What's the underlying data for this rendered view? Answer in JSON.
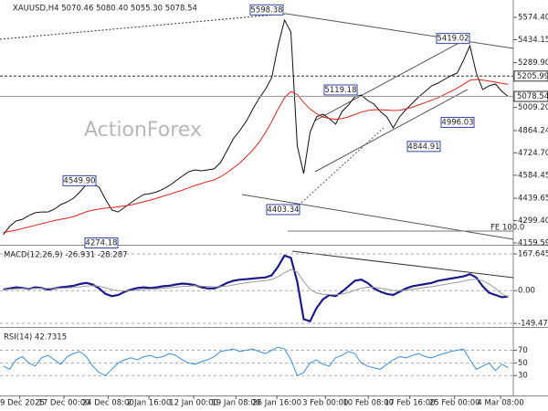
{
  "watermark": "ActionForex",
  "chart_data": [
    {
      "type": "line",
      "title": "XAUUSD,H4  5070.46 5080.40 5055.30 5078.54",
      "ylim": [
        4148.1,
        5683.2
      ],
      "yticks": [
        {
          "value": 5574.4,
          "label": "5574.40"
        },
        5434.15,
        {
          "value": 5289.9,
          "label": "5289.90"
        },
        {
          "value": 5009.2,
          "label": "5009.20"
        },
        4864.24,
        {
          "value": 4724.7,
          "label": "4724.70"
        },
        4584.45,
        4439.65,
        {
          "value": 4299.4,
          "label": "4299.40"
        },
        4159.59
      ],
      "series": [
        {
          "name": "XAUUSD",
          "color": "#111111",
          "values": [
            4211,
            4263,
            4297,
            4308,
            4331,
            4349,
            4354,
            4354,
            4371,
            4400,
            4417,
            4440,
            4480,
            4526,
            4532,
            4509,
            4434,
            4366,
            4354,
            4383,
            4412,
            4440,
            4463,
            4469,
            4480,
            4497,
            4520,
            4549,
            4578,
            4606,
            4618,
            4612,
            4618,
            4624,
            4664,
            4738,
            4813,
            4864,
            4921,
            4996,
            5065,
            5122,
            5196,
            5397,
            5557,
            5483,
            4767,
            4595,
            4853,
            4950,
            4967,
            4939,
            4904,
            4984,
            5024,
            5076,
            5087,
            5053,
            5030,
            4984,
            4950,
            4881,
            4950,
            4996,
            5036,
            5076,
            5110,
            5145,
            5162,
            5185,
            5208,
            5225,
            5305,
            5397,
            5225,
            5122,
            5145,
            5156,
            5110,
            5078.54
          ]
        },
        {
          "name": "MA",
          "color": "#e02020",
          "values": [
            4225,
            4232,
            4240,
            4250,
            4260,
            4270,
            4280,
            4290,
            4300,
            4308,
            4315,
            4325,
            4340,
            4355,
            4365,
            4372,
            4378,
            4382,
            4386,
            4392,
            4398,
            4408,
            4418,
            4428,
            4440,
            4452,
            4465,
            4478,
            4490,
            4505,
            4520,
            4532,
            4545,
            4555,
            4575,
            4600,
            4630,
            4660,
            4700,
            4740,
            4790,
            4850,
            4920,
            5000,
            5070,
            5110,
            5090,
            5040,
            5000,
            4970,
            4950,
            4940,
            4935,
            4940,
            4950,
            4965,
            4980,
            4990,
            4995,
            4995,
            4993,
            4990,
            4992,
            5000,
            5010,
            5025,
            5040,
            5055,
            5070,
            5090,
            5110,
            5130,
            5155,
            5180,
            5185,
            5180,
            5175,
            5168,
            5160,
            5155
          ]
        }
      ],
      "price_markers": [
        5205.99,
        5078.54
      ],
      "annotations": [
        5598.38,
        5419.02,
        5119.18,
        {
          "value": 4996.03,
          "label": "4996.03"
        },
        4844.91,
        {
          "value": 4549.9,
          "label": "4549.90"
        },
        4274.18,
        4403.34
      ],
      "fe_label": "FE 100.0"
    },
    {
      "type": "line",
      "title": "MACD(12,26,9) -26.931 -28.287",
      "ylim": [
        -166,
        201
      ],
      "yticks": [
        167.645,
        {
          "value": 0,
          "label": "0.00"
        },
        -149.472
      ],
      "series": [
        {
          "name": "MACD",
          "color": "#1a1a8c",
          "values": [
            5,
            10,
            15,
            12,
            8,
            15,
            12,
            5,
            10,
            15,
            18,
            22,
            30,
            35,
            28,
            10,
            -15,
            -25,
            -20,
            -5,
            5,
            12,
            15,
            12,
            15,
            20,
            22,
            28,
            32,
            30,
            25,
            15,
            10,
            10,
            20,
            35,
            45,
            50,
            52,
            55,
            58,
            60,
            70,
            110,
            160,
            150,
            40,
            -130,
            -140,
            -80,
            -40,
            -20,
            -25,
            -5,
            20,
            45,
            50,
            35,
            10,
            -5,
            -15,
            -20,
            -5,
            10,
            20,
            25,
            30,
            35,
            45,
            50,
            55,
            60,
            65,
            75,
            60,
            20,
            -10,
            -20,
            -30,
            -26.931
          ]
        },
        {
          "name": "Signal",
          "color": "#9a9a9a",
          "values": [
            5,
            6,
            8,
            9,
            9,
            10,
            11,
            10,
            10,
            11,
            12,
            14,
            17,
            21,
            22,
            20,
            13,
            5,
            0,
            -1,
            0,
            3,
            5,
            7,
            8,
            11,
            13,
            16,
            19,
            21,
            22,
            21,
            19,
            17,
            18,
            21,
            26,
            31,
            35,
            39,
            43,
            46,
            51,
            63,
            82,
            96,
            85,
            42,
            6,
            -11,
            -17,
            -18,
            -19,
            -16,
            -9,
            2,
            11,
            16,
            15,
            11,
            6,
            1,
            0,
            2,
            6,
            10,
            14,
            18,
            23,
            28,
            33,
            38,
            43,
            50,
            52,
            46,
            30,
            10,
            -15,
            -28.287
          ]
        }
      ]
    },
    {
      "type": "line",
      "title": "RSI(14) 42.7315",
      "ylim": [
        0,
        104
      ],
      "yticks": [
        70,
        50,
        30
      ],
      "series": [
        {
          "name": "RSI",
          "color": "#3a8fd8",
          "values": [
            45,
            40,
            55,
            60,
            50,
            45,
            58,
            62,
            55,
            48,
            60,
            65,
            68,
            60,
            45,
            35,
            30,
            40,
            50,
            55,
            58,
            55,
            60,
            62,
            58,
            60,
            65,
            62,
            55,
            50,
            48,
            52,
            55,
            60,
            68,
            70,
            72,
            68,
            70,
            72,
            68,
            65,
            70,
            75,
            72,
            55,
            30,
            35,
            50,
            55,
            48,
            45,
            58,
            62,
            68,
            65,
            50,
            45,
            42,
            40,
            48,
            55,
            60,
            58,
            62,
            65,
            60,
            58,
            62,
            65,
            68,
            70,
            72,
            55,
            40,
            45,
            50,
            38,
            48,
            42.7315
          ]
        }
      ],
      "xticks": [
        {
          "value": 2.6,
          "label": "9 Dec 2025"
        },
        {
          "value": 9.5,
          "label": "17 Dec 00:00"
        },
        {
          "value": 16.4,
          "label": "24 Dec 08:00"
        },
        {
          "value": 22.8,
          "label": "2 Jan 16:00"
        },
        {
          "value": 29.8,
          "label": "12 Jan 00:00"
        },
        {
          "value": 36.4,
          "label": "19 Jan 08:00"
        },
        {
          "value": 42.8,
          "label": "26 Jan 16:00"
        },
        {
          "value": 50.4,
          "label": "3 Feb 00:00"
        },
        {
          "value": 57.1,
          "label": "10 Feb 08:00"
        },
        {
          "value": 63.6,
          "label": "17 Feb 16:00"
        },
        {
          "value": 70.6,
          "label": "25 Feb 00:00"
        },
        {
          "value": 77.8,
          "label": "4 Mar 08:00"
        }
      ]
    }
  ]
}
